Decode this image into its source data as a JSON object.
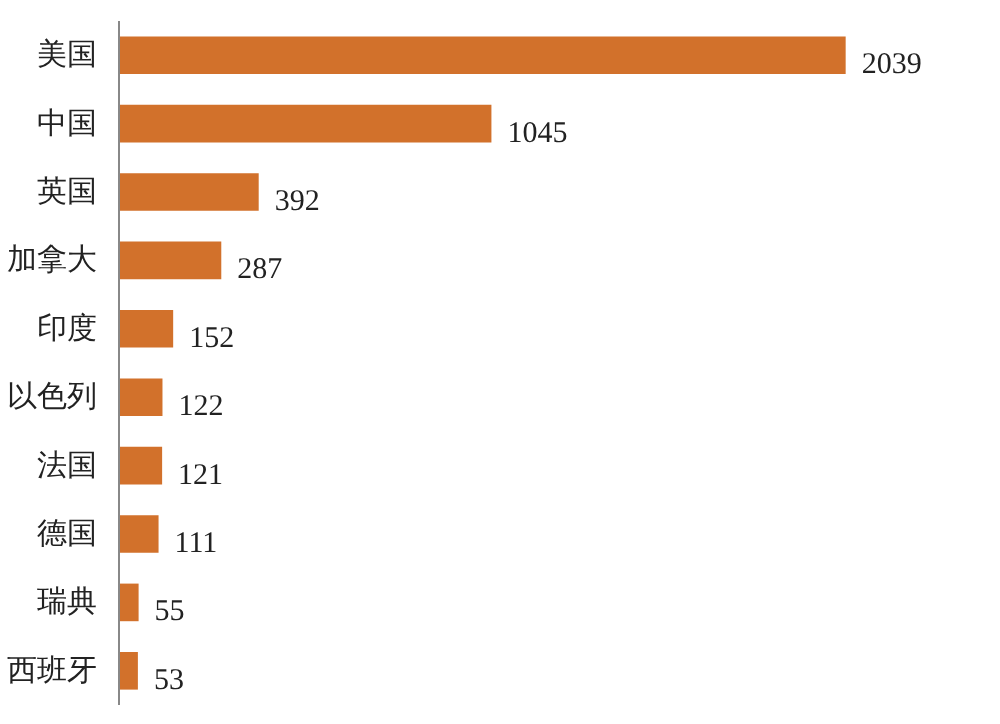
{
  "chart_data": {
    "type": "bar",
    "orientation": "horizontal",
    "categories": [
      "美国",
      "中国",
      "英国",
      "加拿大",
      "印度",
      "以色列",
      "法国",
      "德国",
      "瑞典",
      "西班牙"
    ],
    "values": [
      2039,
      1045,
      392,
      287,
      152,
      122,
      121,
      111,
      55,
      53
    ],
    "color": "#d2712b",
    "data_labels": true
  }
}
